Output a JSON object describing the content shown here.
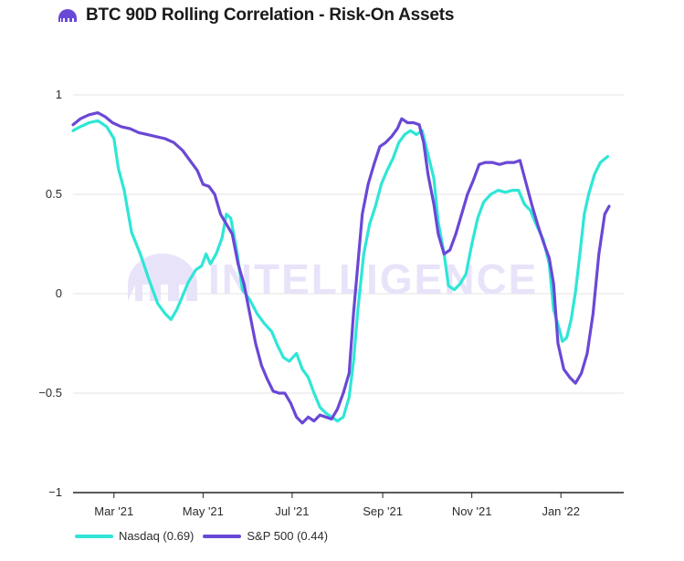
{
  "header": {
    "title": "BTC 90D Rolling Correlation - Risk-On Assets",
    "icon": "kraken-logo-icon"
  },
  "watermark": "INTELLIGENCE",
  "colors": {
    "nasdaq": "#2ee6d6",
    "sp500": "#6a48d6",
    "grid": "#e3e3e3",
    "axis": "#222222",
    "watermark": "#e9e3fa"
  },
  "chart_data": {
    "type": "line",
    "title": "BTC 90D Rolling Correlation - Risk-On Assets",
    "xlabel": "",
    "ylabel": "",
    "ylim": [
      -1,
      1
    ],
    "yticks": [
      1,
      0.5,
      0,
      -0.5,
      -1
    ],
    "ytick_labels": [
      "1",
      "0.5",
      "0",
      "−0.5",
      "−1"
    ],
    "xlim": [
      "2021-02-01",
      "2022-02-13"
    ],
    "xticks": [
      "2021-03-01",
      "2021-05-01",
      "2021-07-01",
      "2021-09-01",
      "2021-11-01",
      "2022-01-01"
    ],
    "xtick_labels": [
      "Mar '21",
      "May '21",
      "Jul '21",
      "Sep '21",
      "Nov '21",
      "Jan '22"
    ],
    "grid": true,
    "legend_position": "bottom-left",
    "series": [
      {
        "name": "Nasdaq (0.69)",
        "points": [
          [
            "2021-02-01",
            0.82
          ],
          [
            "2021-02-06",
            0.84
          ],
          [
            "2021-02-12",
            0.86
          ],
          [
            "2021-02-18",
            0.87
          ],
          [
            "2021-02-24",
            0.84
          ],
          [
            "2021-03-01",
            0.78
          ],
          [
            "2021-03-04",
            0.63
          ],
          [
            "2021-03-08",
            0.52
          ],
          [
            "2021-03-13",
            0.31
          ],
          [
            "2021-03-19",
            0.2
          ],
          [
            "2021-03-25",
            0.07
          ],
          [
            "2021-03-31",
            -0.05
          ],
          [
            "2021-04-05",
            -0.1
          ],
          [
            "2021-04-09",
            -0.13
          ],
          [
            "2021-04-13",
            -0.08
          ],
          [
            "2021-04-17",
            -0.01
          ],
          [
            "2021-04-21",
            0.06
          ],
          [
            "2021-04-26",
            0.12
          ],
          [
            "2021-04-30",
            0.14
          ],
          [
            "2021-05-03",
            0.2
          ],
          [
            "2021-05-06",
            0.15
          ],
          [
            "2021-05-10",
            0.2
          ],
          [
            "2021-05-14",
            0.28
          ],
          [
            "2021-05-17",
            0.4
          ],
          [
            "2021-05-20",
            0.38
          ],
          [
            "2021-05-24",
            0.22
          ],
          [
            "2021-05-28",
            0.02
          ],
          [
            "2021-06-02",
            -0.03
          ],
          [
            "2021-06-07",
            -0.1
          ],
          [
            "2021-06-12",
            -0.15
          ],
          [
            "2021-06-17",
            -0.19
          ],
          [
            "2021-06-21",
            -0.26
          ],
          [
            "2021-06-25",
            -0.32
          ],
          [
            "2021-06-29",
            -0.34
          ],
          [
            "2021-07-04",
            -0.3
          ],
          [
            "2021-07-08",
            -0.38
          ],
          [
            "2021-07-12",
            -0.42
          ],
          [
            "2021-07-16",
            -0.5
          ],
          [
            "2021-07-20",
            -0.57
          ],
          [
            "2021-07-24",
            -0.6
          ],
          [
            "2021-07-28",
            -0.62
          ],
          [
            "2021-08-01",
            -0.64
          ],
          [
            "2021-08-05",
            -0.62
          ],
          [
            "2021-08-09",
            -0.52
          ],
          [
            "2021-08-12",
            -0.34
          ],
          [
            "2021-08-15",
            -0.08
          ],
          [
            "2021-08-19",
            0.2
          ],
          [
            "2021-08-23",
            0.35
          ],
          [
            "2021-08-27",
            0.44
          ],
          [
            "2021-08-31",
            0.55
          ],
          [
            "2021-09-04",
            0.62
          ],
          [
            "2021-09-08",
            0.68
          ],
          [
            "2021-09-12",
            0.76
          ],
          [
            "2021-09-16",
            0.8
          ],
          [
            "2021-09-20",
            0.82
          ],
          [
            "2021-09-24",
            0.8
          ],
          [
            "2021-09-28",
            0.82
          ],
          [
            "2021-10-02",
            0.7
          ],
          [
            "2021-10-06",
            0.58
          ],
          [
            "2021-10-09",
            0.36
          ],
          [
            "2021-10-13",
            0.2
          ],
          [
            "2021-10-16",
            0.04
          ],
          [
            "2021-10-20",
            0.02
          ],
          [
            "2021-10-24",
            0.05
          ],
          [
            "2021-10-28",
            0.1
          ],
          [
            "2021-11-01",
            0.25
          ],
          [
            "2021-11-05",
            0.38
          ],
          [
            "2021-11-09",
            0.46
          ],
          [
            "2021-11-14",
            0.5
          ],
          [
            "2021-11-19",
            0.52
          ],
          [
            "2021-11-24",
            0.51
          ],
          [
            "2021-11-29",
            0.52
          ],
          [
            "2021-12-03",
            0.52
          ],
          [
            "2021-12-07",
            0.45
          ],
          [
            "2021-12-11",
            0.42
          ],
          [
            "2021-12-15",
            0.35
          ],
          [
            "2021-12-20",
            0.27
          ],
          [
            "2021-12-24",
            0.15
          ],
          [
            "2021-12-27",
            -0.08
          ],
          [
            "2021-12-31",
            -0.18
          ],
          [
            "2022-01-02",
            -0.24
          ],
          [
            "2022-01-05",
            -0.22
          ],
          [
            "2022-01-08",
            -0.13
          ],
          [
            "2022-01-11",
            0.01
          ],
          [
            "2022-01-14",
            0.2
          ],
          [
            "2022-01-17",
            0.4
          ],
          [
            "2022-01-20",
            0.5
          ],
          [
            "2022-01-24",
            0.6
          ],
          [
            "2022-01-28",
            0.66
          ],
          [
            "2022-02-02",
            0.69
          ]
        ]
      },
      {
        "name": "S&P 500 (0.44)",
        "points": [
          [
            "2021-02-01",
            0.85
          ],
          [
            "2021-02-06",
            0.88
          ],
          [
            "2021-02-12",
            0.9
          ],
          [
            "2021-02-18",
            0.91
          ],
          [
            "2021-02-23",
            0.89
          ],
          [
            "2021-02-28",
            0.86
          ],
          [
            "2021-03-06",
            0.84
          ],
          [
            "2021-03-12",
            0.83
          ],
          [
            "2021-03-18",
            0.81
          ],
          [
            "2021-03-24",
            0.8
          ],
          [
            "2021-03-30",
            0.79
          ],
          [
            "2021-04-05",
            0.78
          ],
          [
            "2021-04-11",
            0.76
          ],
          [
            "2021-04-17",
            0.72
          ],
          [
            "2021-04-22",
            0.67
          ],
          [
            "2021-04-27",
            0.62
          ],
          [
            "2021-05-01",
            0.55
          ],
          [
            "2021-05-05",
            0.54
          ],
          [
            "2021-05-09",
            0.5
          ],
          [
            "2021-05-13",
            0.4
          ],
          [
            "2021-05-17",
            0.35
          ],
          [
            "2021-05-21",
            0.3
          ],
          [
            "2021-05-25",
            0.15
          ],
          [
            "2021-05-29",
            0.05
          ],
          [
            "2021-06-02",
            -0.1
          ],
          [
            "2021-06-06",
            -0.25
          ],
          [
            "2021-06-10",
            -0.36
          ],
          [
            "2021-06-14",
            -0.43
          ],
          [
            "2021-06-18",
            -0.49
          ],
          [
            "2021-06-22",
            -0.5
          ],
          [
            "2021-06-26",
            -0.5
          ],
          [
            "2021-06-30",
            -0.55
          ],
          [
            "2021-07-04",
            -0.62
          ],
          [
            "2021-07-08",
            -0.65
          ],
          [
            "2021-07-12",
            -0.62
          ],
          [
            "2021-07-16",
            -0.64
          ],
          [
            "2021-07-20",
            -0.61
          ],
          [
            "2021-07-24",
            -0.62
          ],
          [
            "2021-07-28",
            -0.63
          ],
          [
            "2021-08-01",
            -0.58
          ],
          [
            "2021-08-05",
            -0.5
          ],
          [
            "2021-08-09",
            -0.4
          ],
          [
            "2021-08-12",
            -0.1
          ],
          [
            "2021-08-15",
            0.15
          ],
          [
            "2021-08-18",
            0.4
          ],
          [
            "2021-08-22",
            0.55
          ],
          [
            "2021-08-26",
            0.65
          ],
          [
            "2021-08-30",
            0.74
          ],
          [
            "2021-09-03",
            0.76
          ],
          [
            "2021-09-07",
            0.79
          ],
          [
            "2021-09-11",
            0.83
          ],
          [
            "2021-09-14",
            0.88
          ],
          [
            "2021-09-18",
            0.86
          ],
          [
            "2021-09-22",
            0.86
          ],
          [
            "2021-09-26",
            0.85
          ],
          [
            "2021-09-29",
            0.76
          ],
          [
            "2021-10-02",
            0.6
          ],
          [
            "2021-10-06",
            0.45
          ],
          [
            "2021-10-09",
            0.3
          ],
          [
            "2021-10-13",
            0.2
          ],
          [
            "2021-10-17",
            0.22
          ],
          [
            "2021-10-21",
            0.3
          ],
          [
            "2021-10-25",
            0.4
          ],
          [
            "2021-10-29",
            0.5
          ],
          [
            "2021-11-02",
            0.57
          ],
          [
            "2021-11-06",
            0.65
          ],
          [
            "2021-11-10",
            0.66
          ],
          [
            "2021-11-15",
            0.66
          ],
          [
            "2021-11-20",
            0.65
          ],
          [
            "2021-11-25",
            0.66
          ],
          [
            "2021-11-30",
            0.66
          ],
          [
            "2021-12-04",
            0.67
          ],
          [
            "2021-12-08",
            0.56
          ],
          [
            "2021-12-12",
            0.45
          ],
          [
            "2021-12-16",
            0.35
          ],
          [
            "2021-12-20",
            0.26
          ],
          [
            "2021-12-24",
            0.18
          ],
          [
            "2021-12-27",
            0.05
          ],
          [
            "2021-12-30",
            -0.25
          ],
          [
            "2022-01-03",
            -0.38
          ],
          [
            "2022-01-07",
            -0.42
          ],
          [
            "2022-01-11",
            -0.45
          ],
          [
            "2022-01-15",
            -0.4
          ],
          [
            "2022-01-19",
            -0.3
          ],
          [
            "2022-01-23",
            -0.1
          ],
          [
            "2022-01-27",
            0.2
          ],
          [
            "2022-01-31",
            0.4
          ],
          [
            "2022-02-03",
            0.44
          ]
        ]
      }
    ]
  },
  "legend": {
    "nasdaq_label": "Nasdaq (0.69)",
    "sp500_label": "S&P 500 (0.44)"
  }
}
